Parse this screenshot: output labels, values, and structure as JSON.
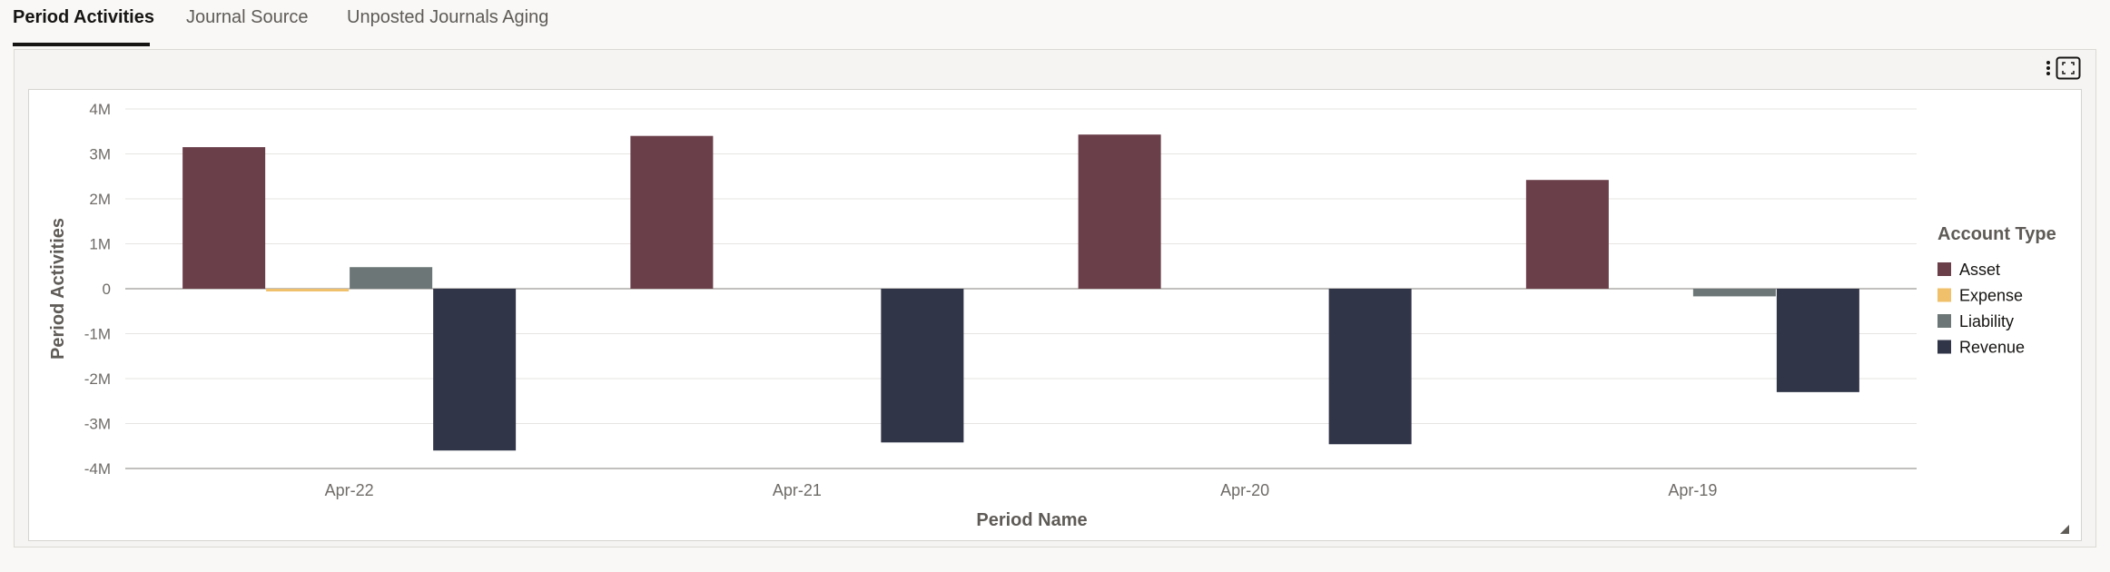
{
  "tabs": [
    {
      "label": "Period Activities",
      "active": true
    },
    {
      "label": "Journal Source",
      "active": false
    },
    {
      "label": "Unposted Journals Aging",
      "active": false
    }
  ],
  "toolbar": {
    "menu_icon": "more-vertical-icon",
    "expand_icon": "expand-icon"
  },
  "chart_data": {
    "type": "bar",
    "ylabel": "Period Activities",
    "xlabel": "Period Name",
    "categories": [
      "Apr-22",
      "Apr-21",
      "Apr-20",
      "Apr-19"
    ],
    "yticks": [
      "4M",
      "3M",
      "2M",
      "1M",
      "0",
      "-1M",
      "-2M",
      "-3M",
      "-4M"
    ],
    "ylim": [
      -4000000,
      4000000
    ],
    "grid": true,
    "legend_title": "Account Type",
    "legend_position": "right",
    "series": [
      {
        "name": "Asset",
        "color": "#6a3f4a",
        "values": [
          3150000,
          3400000,
          3430000,
          2420000
        ]
      },
      {
        "name": "Expense",
        "color": "#f0c06b",
        "values": [
          -60000,
          0,
          0,
          0
        ]
      },
      {
        "name": "Liability",
        "color": "#6c7676",
        "values": [
          480000,
          0,
          0,
          -170000
        ]
      },
      {
        "name": "Revenue",
        "color": "#303548",
        "values": [
          -3600000,
          -3420000,
          -3460000,
          -2300000
        ]
      }
    ]
  }
}
